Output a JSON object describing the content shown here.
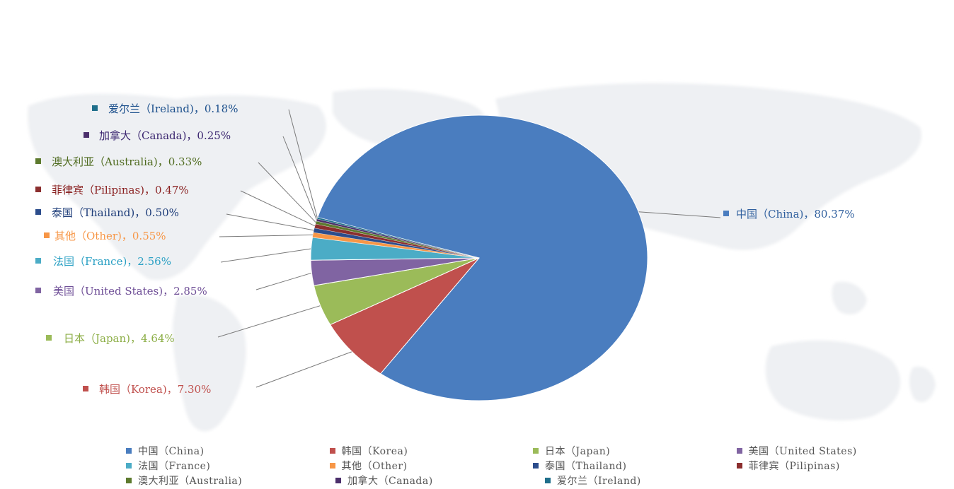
{
  "chart_data": {
    "type": "pie",
    "title": "",
    "slices": [
      {
        "name": "中国（China)",
        "value": 80.37,
        "label": "中国（China)，80.37%",
        "color": "#4a7dbf",
        "label_color": "#2f5f9e"
      },
      {
        "name": "韩国（Korea)",
        "value": 7.3,
        "label": "韩国（Korea)，7.30%",
        "color": "#c0504d",
        "label_color": "#c0504d"
      },
      {
        "name": "日本（Japan)",
        "value": 4.64,
        "label": "日本（Japan)，4.64%",
        "color": "#9bbb59",
        "label_color": "#8cae46"
      },
      {
        "name": "美国（United States)",
        "value": 2.85,
        "label": "美国（United States)，2.85%",
        "color": "#8064a2",
        "label_color": "#6f4f97"
      },
      {
        "name": "法国（France)",
        "value": 2.56,
        "label": "法国（France)，2.56%",
        "color": "#4bacc6",
        "label_color": "#2aa0c4"
      },
      {
        "name": "其他（Other)",
        "value": 0.55,
        "label": "其他（Other)，0.55%",
        "color": "#f79646",
        "label_color": "#f79646"
      },
      {
        "name": "泰国（Thailand)",
        "value": 0.5,
        "label": "泰国（Thailand)，0.50%",
        "color": "#2c4d8c",
        "label_color": "#1f3e7a"
      },
      {
        "name": "菲律宾（Pilipinas)",
        "value": 0.47,
        "label": "菲律宾（Pilipinas)，0.47%",
        "color": "#8b2e2e",
        "label_color": "#8b2323"
      },
      {
        "name": "澳大利亚（Australia)",
        "value": 0.33,
        "label": "澳大利亚（Australia)，0.33%",
        "color": "#5d7a2e",
        "label_color": "#4f6b1f"
      },
      {
        "name": "加拿大（Canada)",
        "value": 0.25,
        "label": "加拿大（Canada)，0.25%",
        "color": "#4b2f6b",
        "label_color": "#3b2670"
      },
      {
        "name": "爱尔兰（Ireland)",
        "value": 0.18,
        "label": "爱尔兰（Ireland)，0.18%",
        "color": "#1f6f8b",
        "label_color": "#1b4f8c"
      }
    ],
    "legend": [
      [
        "中国（China)",
        "韩国（Korea)",
        "日本（Japan)",
        "美国（United States)"
      ],
      [
        "法国（France)",
        "其他（Other)",
        "泰国（Thailand)",
        "菲律宾（Pilipinas)"
      ],
      [
        "澳大利亚（Australia)",
        "加拿大（Canada)",
        "爱尔兰（Ireland)"
      ]
    ],
    "legend_position": "bottom",
    "start": "China slice begins upper-left, slices proceed clockwise"
  }
}
